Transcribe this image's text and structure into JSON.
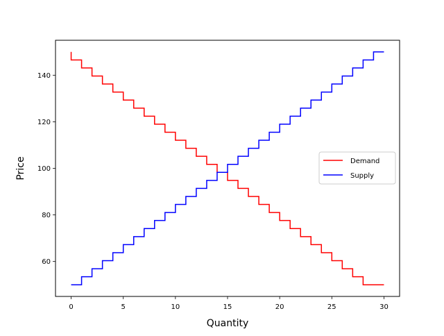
{
  "chart_data": {
    "type": "line",
    "step": "pre",
    "xlabel": "Quantity",
    "ylabel": "Price",
    "xlim": [
      -1.5,
      31.5
    ],
    "ylim": [
      45,
      155
    ],
    "x_ticks": [
      0,
      5,
      10,
      15,
      20,
      25,
      30
    ],
    "y_ticks": [
      60,
      80,
      100,
      120,
      140
    ],
    "grid": false,
    "legend_position": "center right",
    "x": [
      0,
      1,
      2,
      3,
      4,
      5,
      6,
      7,
      8,
      9,
      10,
      11,
      12,
      13,
      14,
      15,
      16,
      17,
      18,
      19,
      20,
      21,
      22,
      23,
      24,
      25,
      26,
      27,
      28,
      29,
      30
    ],
    "series": [
      {
        "name": "Demand",
        "color": "#ff0000",
        "values": [
          150,
          146.55,
          143.1,
          139.66,
          136.21,
          132.76,
          129.31,
          125.86,
          122.41,
          118.97,
          115.52,
          112.07,
          108.62,
          105.17,
          101.72,
          98.28,
          94.83,
          91.38,
          87.93,
          84.48,
          81.03,
          77.59,
          74.14,
          70.69,
          67.24,
          63.79,
          60.34,
          56.9,
          53.45,
          50,
          50
        ]
      },
      {
        "name": "Supply",
        "color": "#0000ff",
        "values": [
          50,
          50,
          53.45,
          56.9,
          60.34,
          63.79,
          67.24,
          70.69,
          74.14,
          77.59,
          81.03,
          84.48,
          87.93,
          91.38,
          94.83,
          98.28,
          101.72,
          105.17,
          108.62,
          112.07,
          115.52,
          118.97,
          122.41,
          125.86,
          129.31,
          132.76,
          136.21,
          139.66,
          143.1,
          146.55,
          150
        ]
      }
    ]
  }
}
